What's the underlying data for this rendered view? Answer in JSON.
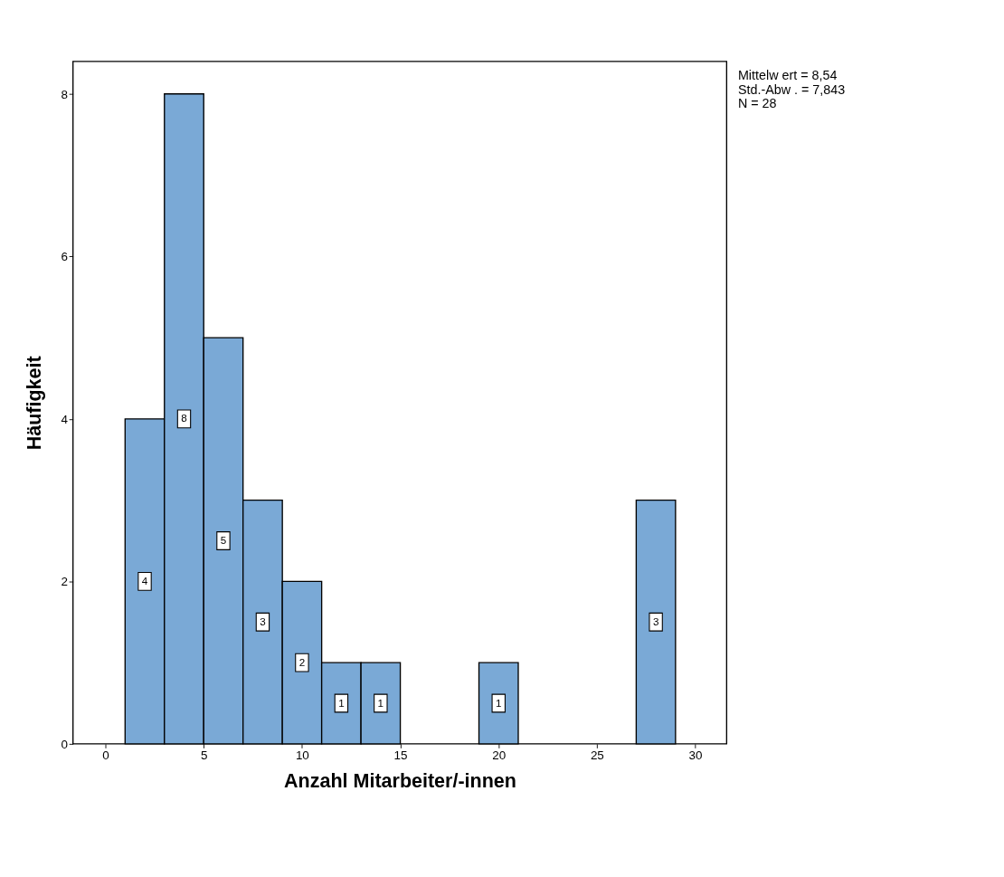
{
  "chart_data": {
    "type": "histogram",
    "xlabel": "Anzahl Mitarbeiter/-innen",
    "ylabel": "Häufigkeit",
    "bins": [
      1,
      3,
      5,
      7,
      9,
      11,
      13,
      15,
      17,
      19,
      21,
      23,
      25,
      27,
      29
    ],
    "values": [
      4,
      8,
      5,
      3,
      2,
      1,
      1,
      0,
      0,
      1,
      0,
      0,
      0,
      3
    ],
    "value_labels": [
      "4",
      "8",
      "5",
      "3",
      "2",
      "1",
      "1",
      null,
      null,
      "1",
      null,
      null,
      null,
      "3"
    ],
    "color": "#7aa9d6",
    "xlim": [
      -1.65,
      31.6
    ],
    "xticks": [
      0,
      5,
      10,
      15,
      20,
      25,
      30
    ],
    "ylim": [
      0,
      8.4
    ],
    "yticks": [
      0,
      2,
      4,
      6,
      8
    ],
    "grid": false,
    "annotations": [
      "Mittelw ert = 8,54",
      "Std.-Abw . = 7,843",
      "N = 28"
    ]
  }
}
